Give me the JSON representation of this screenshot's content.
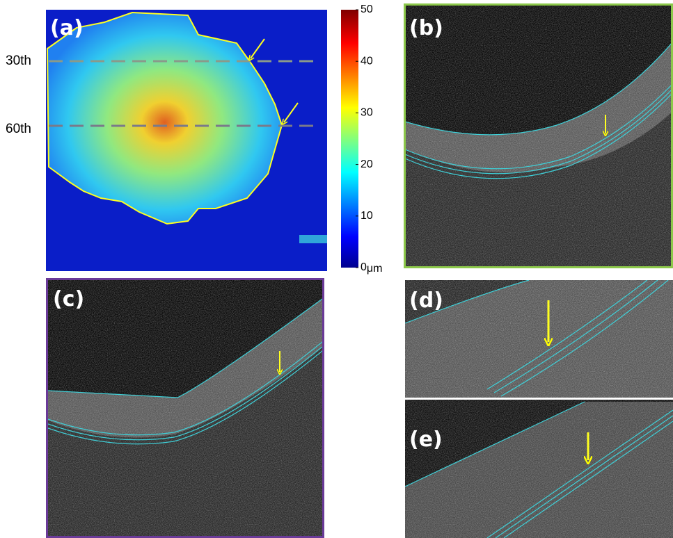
{
  "panels": [
    {
      "label": "(a)"
    },
    {
      "label": "(b)"
    },
    {
      "label": "(c)"
    },
    {
      "label": "(d)"
    },
    {
      "label": "(e)"
    }
  ],
  "row_labels": [
    "30th",
    "60th"
  ],
  "colorbar": {
    "range": [
      0,
      50
    ],
    "ticks": [
      0,
      10,
      20,
      30,
      40,
      50
    ],
    "unit": "μm"
  }
}
